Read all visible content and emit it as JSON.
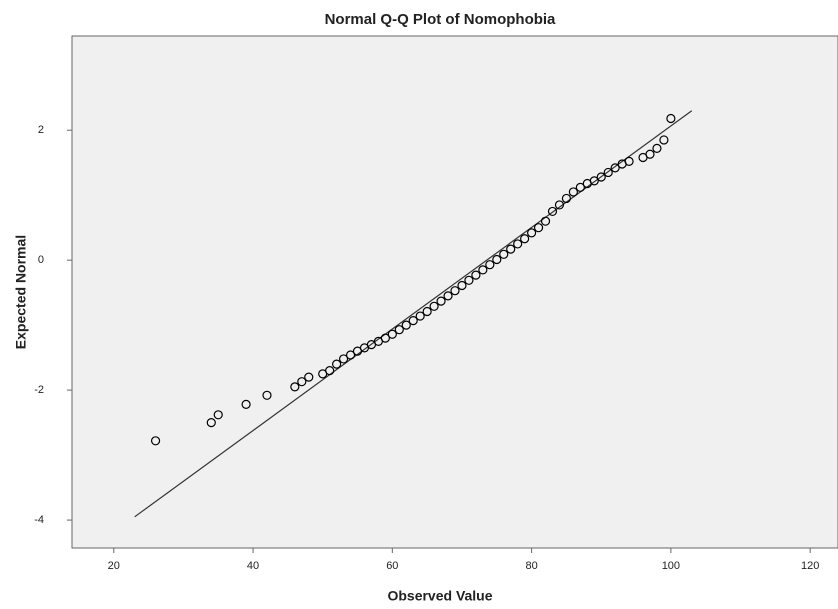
{
  "chart_data": {
    "type": "scatter",
    "title": "Normal Q-Q Plot of Nomophobia",
    "x_label": "Observed Value",
    "y_label": "Expected Normal",
    "x": [
      26,
      34,
      35,
      39,
      42,
      46,
      47,
      48,
      50,
      51,
      52,
      53,
      54,
      55,
      56,
      57,
      58,
      59,
      60,
      61,
      62,
      63,
      64,
      65,
      66,
      67,
      68,
      69,
      70,
      71,
      72,
      73,
      74,
      75,
      76,
      77,
      78,
      79,
      80,
      81,
      82,
      83,
      84,
      85,
      86,
      87,
      88,
      89,
      90,
      91,
      92,
      93,
      94,
      96,
      97,
      98,
      99,
      100
    ],
    "values": [
      -2.78,
      -2.5,
      -2.38,
      -2.22,
      -2.08,
      -1.95,
      -1.87,
      -1.8,
      -1.75,
      -1.7,
      -1.6,
      -1.52,
      -1.46,
      -1.4,
      -1.35,
      -1.3,
      -1.25,
      -1.2,
      -1.14,
      -1.07,
      -1.0,
      -0.93,
      -0.86,
      -0.79,
      -0.71,
      -0.63,
      -0.55,
      -0.47,
      -0.39,
      -0.31,
      -0.23,
      -0.15,
      -0.07,
      0.01,
      0.09,
      0.17,
      0.25,
      0.33,
      0.42,
      0.5,
      0.6,
      0.75,
      0.85,
      0.95,
      1.05,
      1.12,
      1.18,
      1.22,
      1.28,
      1.35,
      1.42,
      1.48,
      1.52,
      1.58,
      1.63,
      1.72,
      1.85,
      2.18
    ],
    "color": "#000000",
    "line": {
      "x": [
        23,
        103
      ],
      "y": [
        -3.95,
        2.3
      ]
    },
    "xlim": [
      14,
      124
    ],
    "ylim": [
      -4.43,
      3.45
    ],
    "xticks": [
      20,
      40,
      60,
      80,
      100,
      120
    ],
    "yticks": [
      -4,
      -2,
      0,
      2
    ]
  }
}
